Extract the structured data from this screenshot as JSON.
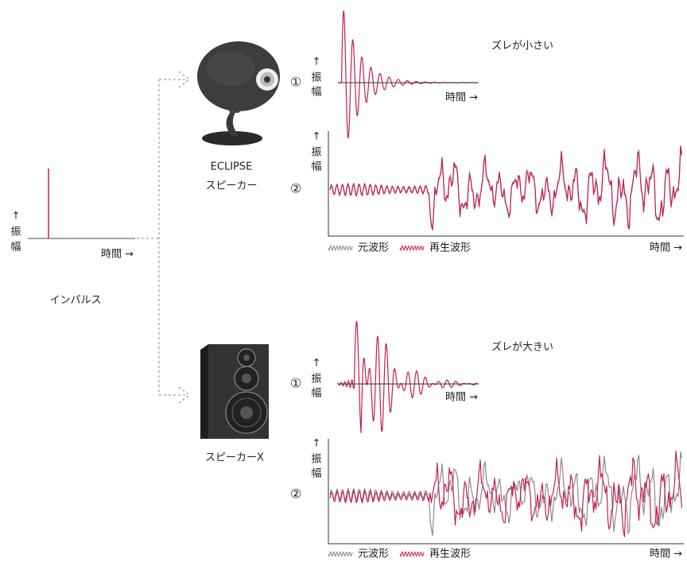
{
  "impulse": {
    "label": "インパルス",
    "y_axis": [
      "↑",
      "振",
      "幅"
    ],
    "x_axis": "時間 →"
  },
  "speakers": [
    {
      "name": [
        "ECLIPSE",
        "スピーカー"
      ],
      "caption": "ズレが小さい",
      "plots": [
        {
          "marker": "①",
          "y_axis": [
            "↑",
            "振",
            "幅"
          ],
          "x_axis": "時間 →"
        },
        {
          "marker": "②",
          "y_axis": [
            "↑",
            "振",
            "幅"
          ],
          "x_axis": "時間 →",
          "legend": [
            "元波形",
            "再生波形"
          ]
        }
      ]
    },
    {
      "name": [
        "スピーカーX"
      ],
      "caption": "ズレが大きい",
      "plots": [
        {
          "marker": "①",
          "y_axis": [
            "↑",
            "振",
            "幅"
          ],
          "x_axis": "時間 →"
        },
        {
          "marker": "②",
          "y_axis": [
            "↑",
            "振",
            "幅"
          ],
          "x_axis": "時間 →",
          "legend": [
            "元波形",
            "再生波形"
          ]
        }
      ]
    }
  ]
}
